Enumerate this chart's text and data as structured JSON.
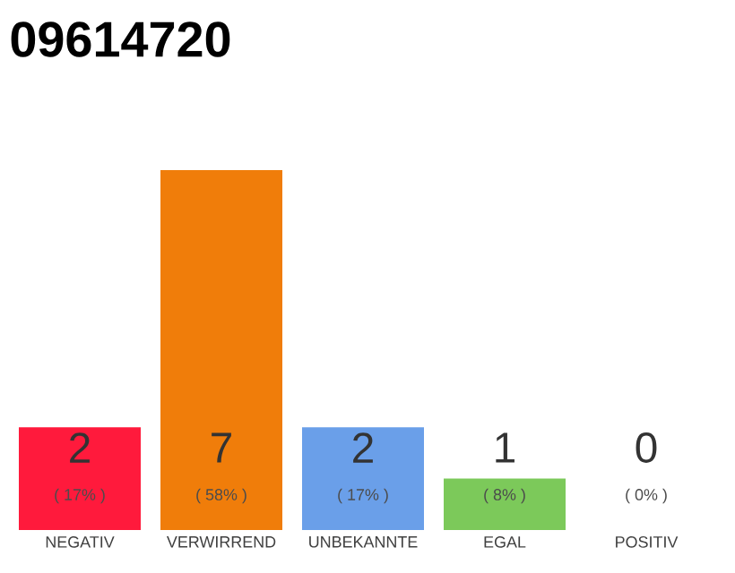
{
  "chart_data": {
    "type": "bar",
    "title": "09614720",
    "categories": [
      "NEGATIV",
      "VERWIRREND",
      "UNBEKANNTE",
      "EGAL",
      "POSITIV"
    ],
    "values": [
      2,
      7,
      2,
      1,
      0
    ],
    "colors": [
      "#ff1a3c",
      "#f07d0a",
      "#6a9fe9",
      "#7cc95a",
      "#cccccc"
    ],
    "ylim": [
      0,
      7
    ],
    "data_labels": true,
    "annotations": [
      "( 17% )",
      "( 58% )",
      "( 17% )",
      "( 8% )",
      "( 0% )"
    ],
    "grid": false
  }
}
